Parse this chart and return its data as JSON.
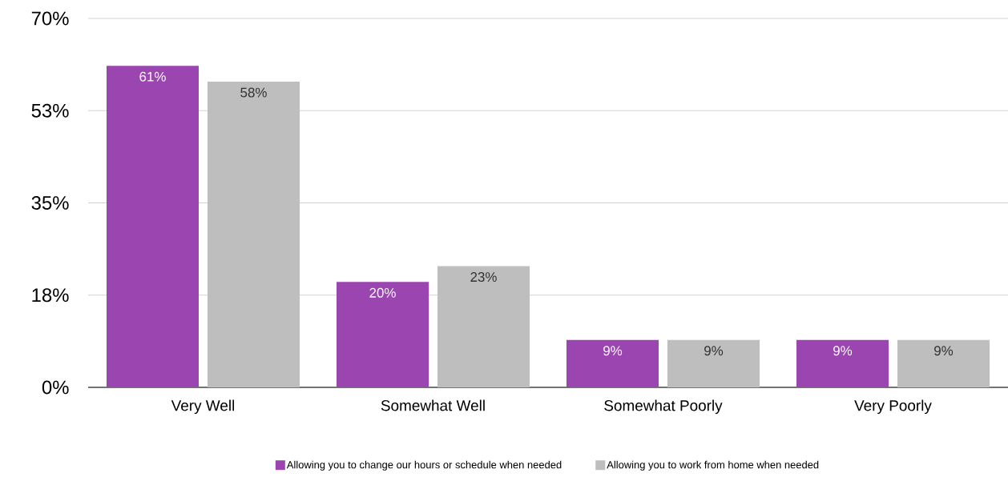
{
  "chart_data": {
    "type": "bar",
    "categories": [
      "Very Well",
      "Somewhat Well",
      "Somewhat Poorly",
      "Very Poorly"
    ],
    "series": [
      {
        "name": "Allowing you to change our hours or schedule when needed",
        "color": "#9b45b0",
        "values": [
          61,
          20,
          9,
          9
        ],
        "value_labels": [
          "61%",
          "20%",
          "9%",
          "9%"
        ]
      },
      {
        "name": "Allowing you to work from home when needed",
        "color": "#bebebe",
        "values": [
          58,
          23,
          9,
          9
        ],
        "value_labels": [
          "58%",
          "23%",
          "9%",
          "9%"
        ]
      }
    ],
    "ylim": [
      0,
      70
    ],
    "yticks": [
      {
        "value": 0,
        "label": "0%"
      },
      {
        "value": 17.5,
        "label": "18%"
      },
      {
        "value": 35,
        "label": "35%"
      },
      {
        "value": 52.5,
        "label": "53%"
      },
      {
        "value": 70,
        "label": "70%"
      }
    ],
    "grid": "y",
    "legend": "bottom"
  }
}
